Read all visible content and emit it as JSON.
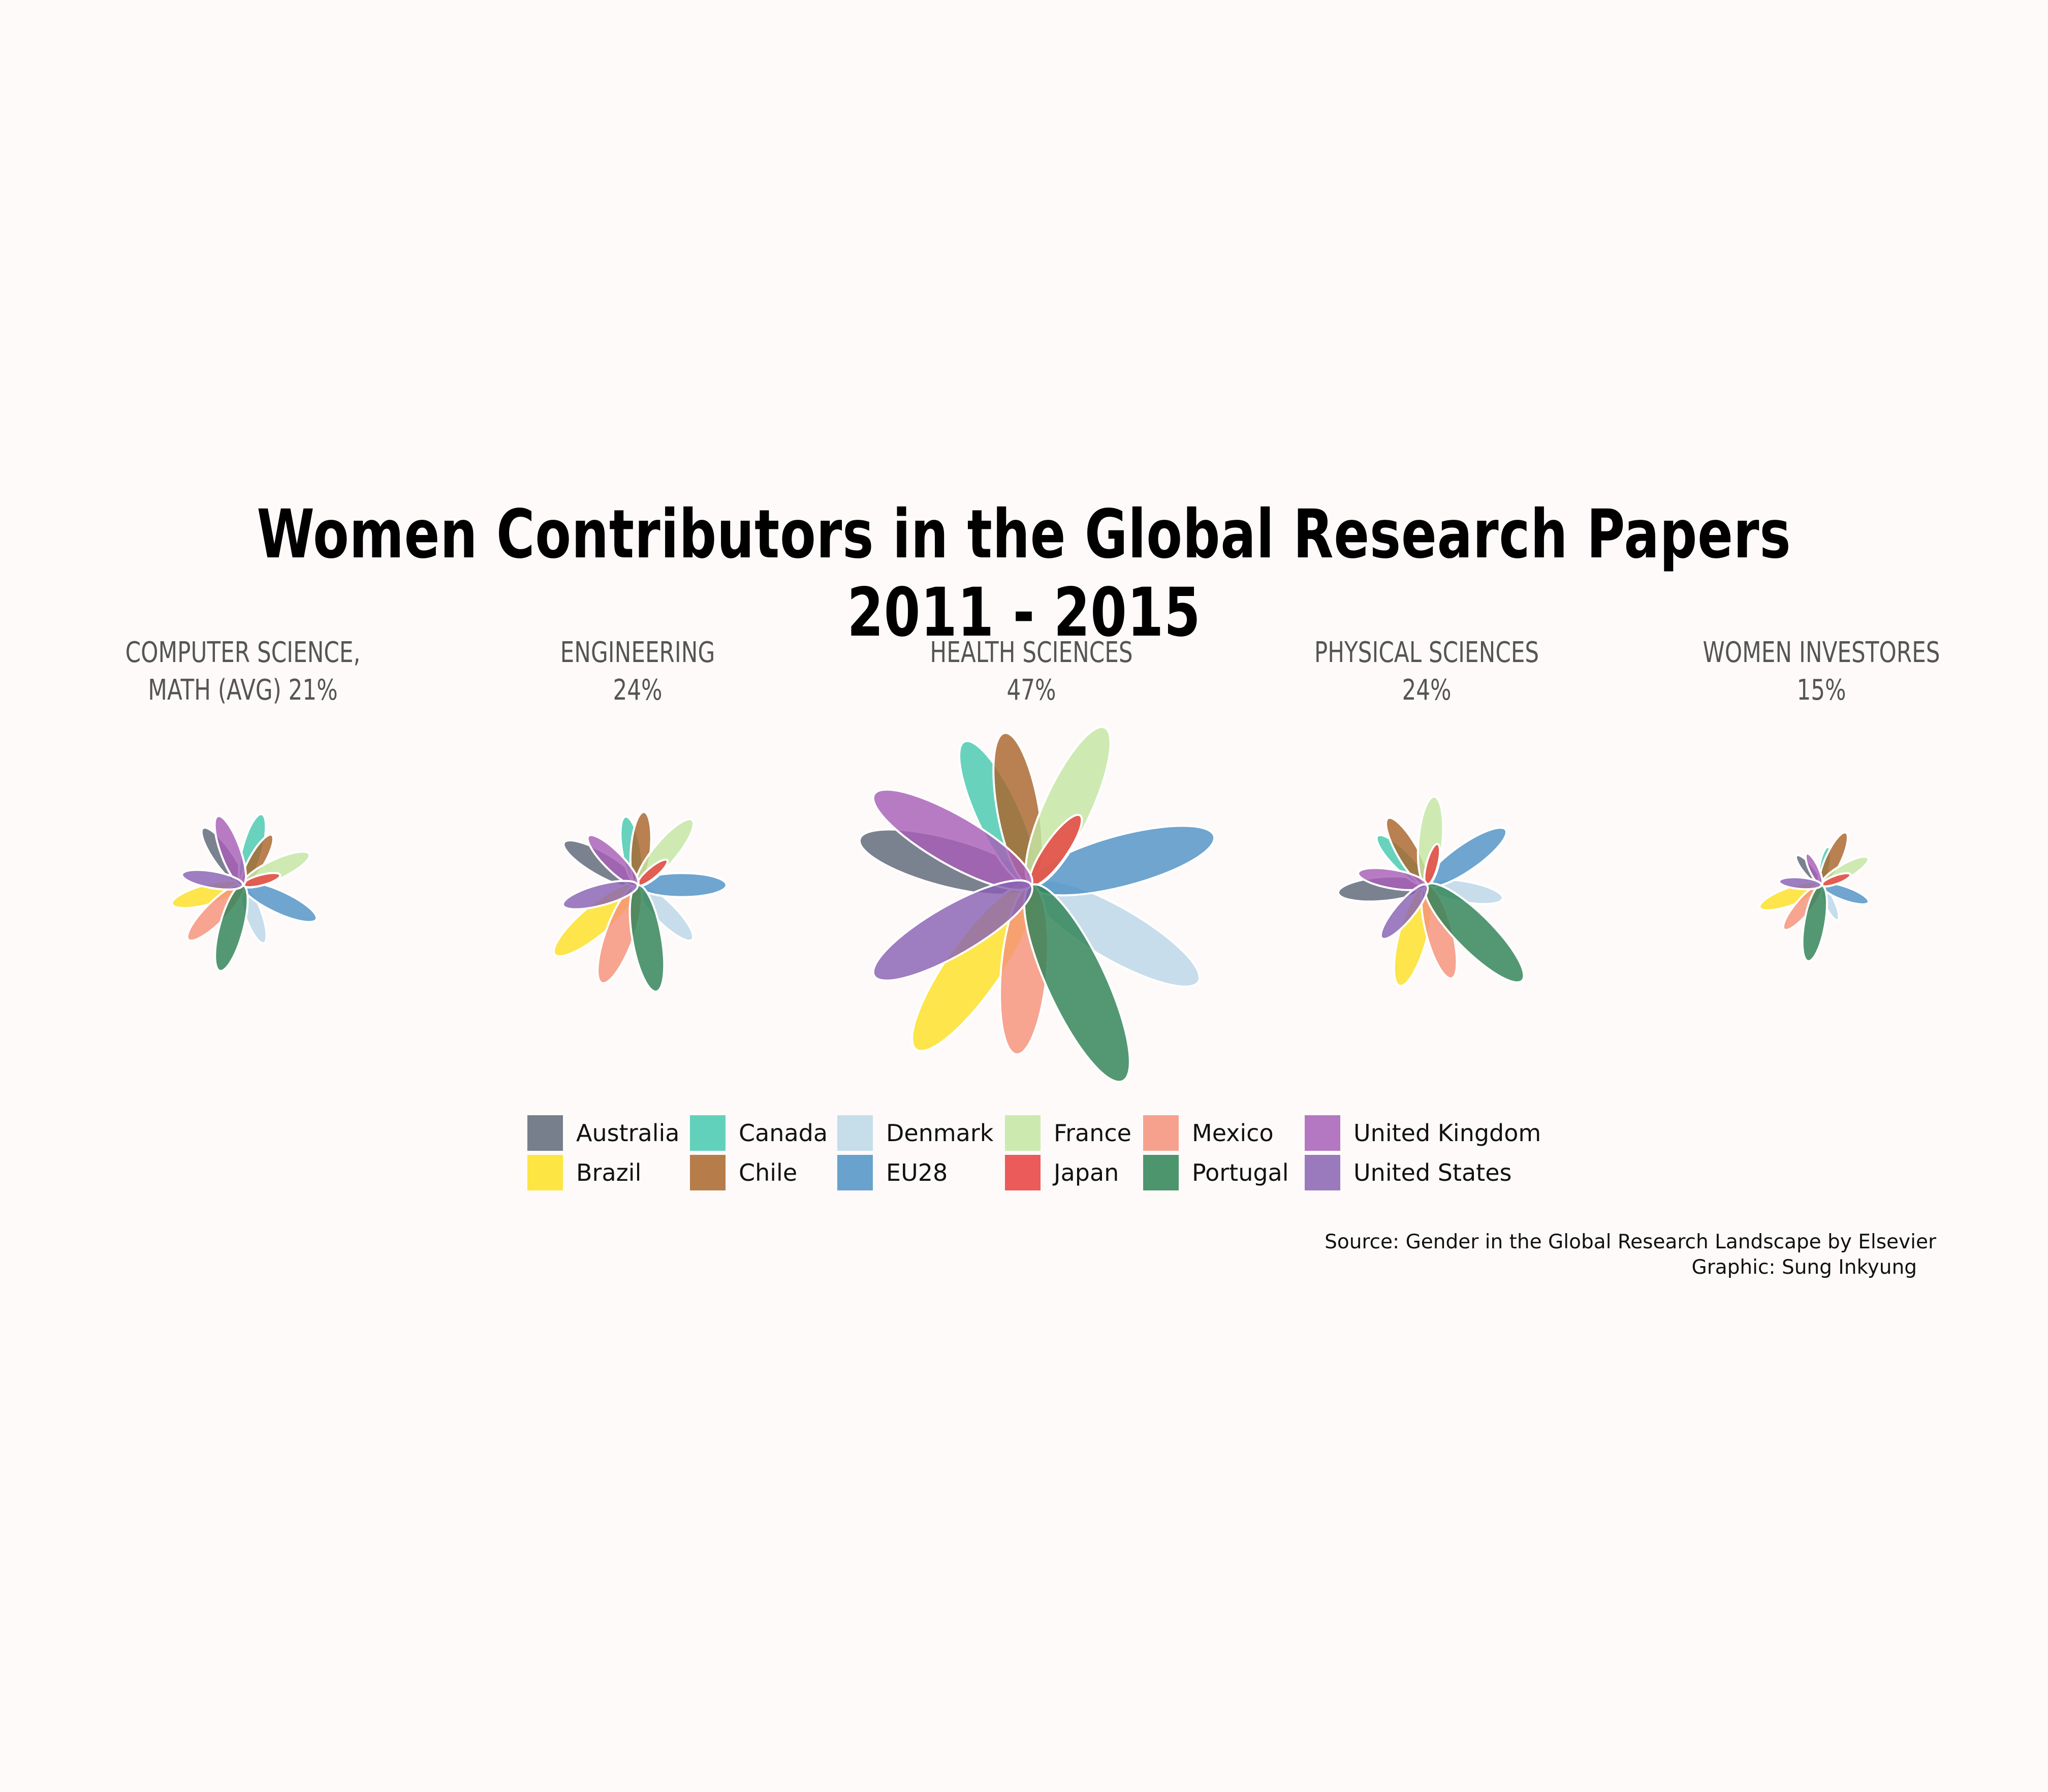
{
  "title": "Women Contributors in the Global Research Papers 2011 - 2015",
  "source": "Source: Gender in the Global Research Landscape by Elsevier",
  "credit": "Graphic: Sung Inkyung",
  "panel_titles": [
    {
      "line1": "COMPUTER SCIENCE,",
      "line2": "MATH (AVG) 21%"
    },
    {
      "line1": "ENGINEERING",
      "line2": "24%"
    },
    {
      "line1": "HEALTH SCIENCES",
      "line2": "47%"
    },
    {
      "line1": "PHYSICAL SCIENCES",
      "line2": "24%"
    },
    {
      "line1": "WOMEN INVESTORES",
      "line2": "15%"
    }
  ],
  "colors": {
    "Australia": "#5e6878",
    "Brazil": "#fde025",
    "Canada": "#47c9b0",
    "Chile": "#a9652c",
    "Denmark": "#bcd7e8",
    "EU28": "#4f92c6",
    "France": "#c3e6a2",
    "Japan": "#e63e3d",
    "Mexico": "#f5917a",
    "Portugal": "#2e8255",
    "United Kingdom": "#a75fb7",
    "United States": "#8961b3"
  },
  "legend": [
    [
      "Australia",
      "Brazil"
    ],
    [
      "Canada",
      "Chile"
    ],
    [
      "Denmark",
      "EU28"
    ],
    [
      "France",
      "Japan"
    ],
    [
      "Mexico",
      "Portugal"
    ],
    [
      "United Kingdom",
      "United States"
    ]
  ],
  "chart_data": {
    "type": "flower",
    "note_unit": "percent of women among research contributors",
    "countries": [
      "Australia",
      "Brazil",
      "Canada",
      "Chile",
      "Denmark",
      "EU28",
      "France",
      "Japan",
      "Mexico",
      "Portugal",
      "United Kingdom",
      "United States"
    ],
    "panels": [
      {
        "name": "COMPUTER SCIENCE, MATH (AVG)",
        "average": 21,
        "values": {
          "Australia": 18,
          "Brazil": 19,
          "Canada": 19,
          "Chile": 15,
          "Denmark": 16,
          "EU28": 21,
          "France": 19,
          "Japan": 10,
          "Mexico": 20,
          "Portugal": 23,
          "United Kingdom": 19,
          "United States": 16
        }
      },
      {
        "name": "ENGINEERING",
        "average": 24,
        "values": {
          "Australia": 22,
          "Brazil": 28,
          "Canada": 18,
          "Chile": 19,
          "Denmark": 20,
          "EU28": 23,
          "France": 22,
          "Japan": 10,
          "Mexico": 27,
          "Portugal": 28,
          "United Kingdom": 18,
          "United States": 20
        }
      },
      {
        "name": "HEALTH SCIENCES",
        "average": 47,
        "values": {
          "Australia": 46,
          "Brazil": 52,
          "Canada": 41,
          "Chile": 40,
          "Denmark": 50,
          "EU28": 49,
          "France": 45,
          "Japan": 22,
          "Mexico": 44,
          "Portugal": 56,
          "United Kingdom": 47,
          "United States": 47
        }
      },
      {
        "name": "PHYSICAL SCIENCES",
        "average": 24,
        "values": {
          "Australia": 23,
          "Brazil": 27,
          "Canada": 18,
          "Chile": 20,
          "Denmark": 20,
          "EU28": 25,
          "France": 23,
          "Japan": 11,
          "Mexico": 25,
          "Portugal": 35,
          "United Kingdom": 18,
          "United States": 18
        }
      },
      {
        "name": "WOMEN INVESTORES",
        "average": 15,
        "values": {
          "Australia": 10,
          "Brazil": 17,
          "Canada": 10,
          "Chile": 15,
          "Denmark": 10,
          "EU28": 13,
          "France": 14,
          "Japan": 8,
          "Mexico": 15,
          "Portugal": 20,
          "United Kingdom": 9,
          "United States": 11
        }
      }
    ]
  }
}
